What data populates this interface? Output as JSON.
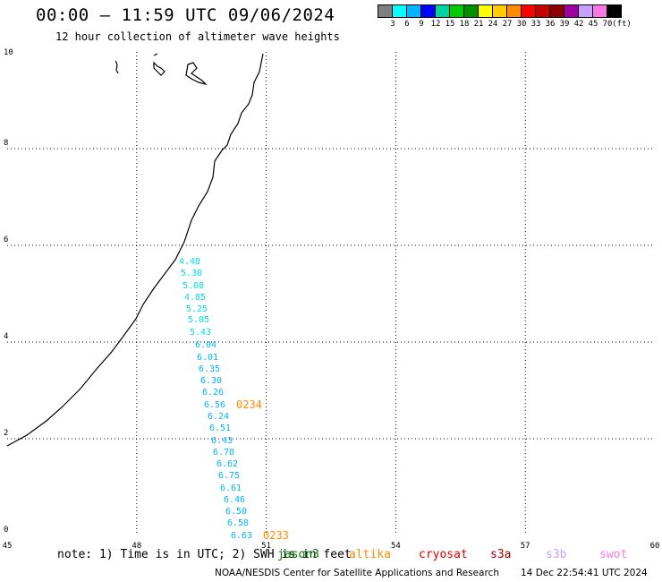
{
  "header": {
    "title": "00:00 – 11:59 UTC 09/06/2024",
    "subtitle": "12 hour collection of altimeter wave heights"
  },
  "color_scale": {
    "colors": [
      "#7f7f7f",
      "#00ffff",
      "#00b4ff",
      "#0000ff",
      "#00d4a0",
      "#00cc00",
      "#008f00",
      "#ffff00",
      "#ffcc00",
      "#ff8c00",
      "#ff0000",
      "#c80000",
      "#8c0000",
      "#a000a0",
      "#c8a0ff",
      "#ff78e6",
      "#000000"
    ],
    "labels": [
      "3",
      "6",
      "9",
      "12",
      "15",
      "18",
      "21",
      "24",
      "27",
      "30",
      "33",
      "36",
      "39",
      "42",
      "45",
      "70",
      "(ft)"
    ]
  },
  "map": {
    "y_ticks": [
      "10",
      "8",
      "6",
      "4",
      "2",
      "0"
    ],
    "x_ticks": [
      "45",
      "48",
      "51",
      "54",
      "57",
      "60"
    ],
    "wave_colors": {
      "cyan": "#00e0e0",
      "blue": "#00b4ff"
    },
    "track_times": [
      "0234",
      "0233"
    ],
    "track_time_color": "#ff8c00"
  },
  "chart_data": {
    "type": "scatter",
    "x_range": [
      45,
      60
    ],
    "y_range": [
      0,
      10
    ],
    "units": "ft",
    "grid": true,
    "wave_heights": [
      "4.48",
      "5.30",
      "5.08",
      "4.85",
      "5.25",
      "5.05",
      "5.43",
      "6.04",
      "6.01",
      "6.35",
      "6.30",
      "6.26",
      "6.56",
      "6.24",
      "6.51",
      "6.43",
      "6.78",
      "6.62",
      "6.75",
      "6.61",
      "6.46",
      "6.50",
      "6.58",
      "6.63"
    ],
    "track_times": [
      "0234",
      "0233"
    ]
  },
  "footer": {
    "note": "note: 1) Time is in UTC; 2) SWH is in feet",
    "missions": [
      {
        "name": "jason3",
        "color": "#008000"
      },
      {
        "name": "altika",
        "color": "#ff8c00"
      },
      {
        "name": "cryosat",
        "color": "#e00000"
      },
      {
        "name": "s3a",
        "color": "#a00000"
      },
      {
        "name": "s3b",
        "color": "#c8a0ff"
      },
      {
        "name": "swot",
        "color": "#ff78e6"
      }
    ],
    "credit": "NOAA/NESDIS Center for Satellite Applications and Research",
    "timestamp": "14 Dec 22:54:41 UTC 2024"
  }
}
